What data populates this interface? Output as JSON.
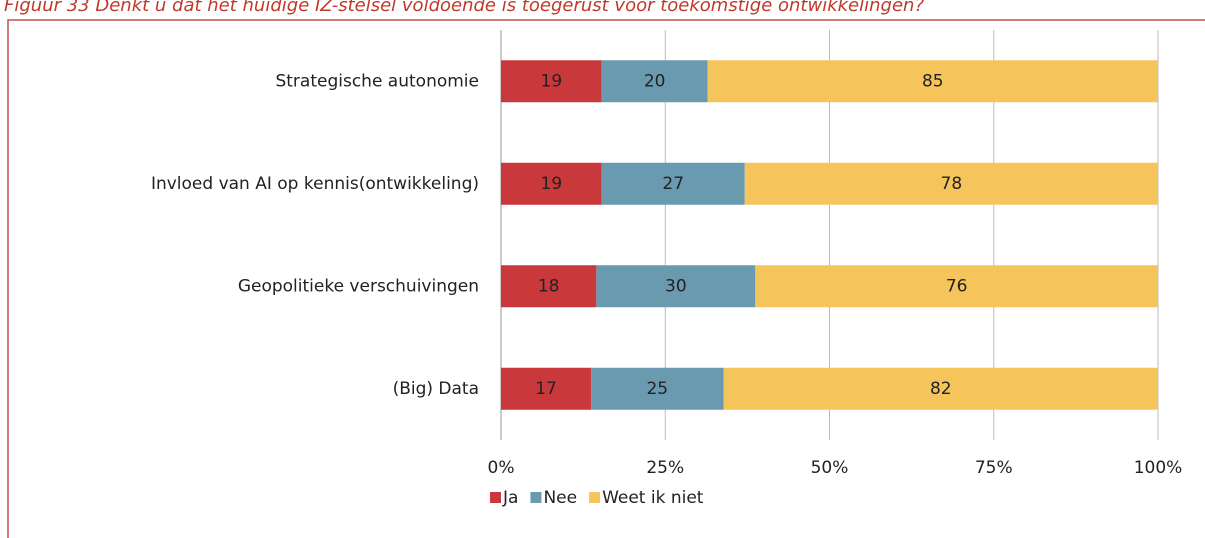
{
  "chart_data": {
    "type": "bar",
    "orientation": "horizontal",
    "stack": "percent",
    "title": "Figuur 33 Denkt u dat het huidige IZ-stelsel voldoende is toegerust voor toekomstige ontwikkelingen?",
    "categories": [
      "Strategische autonomie",
      "Invloed van AI op kennis(ontwikkeling)",
      "Geopolitieke verschuivingen",
      "(Big) Data"
    ],
    "series": [
      {
        "name": "Ja",
        "color": "#c9383a",
        "values": [
          19,
          19,
          18,
          17
        ]
      },
      {
        "name": "Nee",
        "color": "#6a9ab0",
        "values": [
          20,
          27,
          30,
          25
        ]
      },
      {
        "name": "Weet ik niet",
        "color": "#f5c55c",
        "values": [
          85,
          78,
          76,
          82
        ]
      }
    ],
    "xlim": [
      0,
      100
    ],
    "xticks": [
      {
        "value": 0,
        "label": "0%"
      },
      {
        "value": 25,
        "label": "25%"
      },
      {
        "value": 50,
        "label": "50%"
      },
      {
        "value": 75,
        "label": "75%"
      },
      {
        "value": 100,
        "label": "100%"
      }
    ],
    "grid": true,
    "legend": "bottom"
  }
}
